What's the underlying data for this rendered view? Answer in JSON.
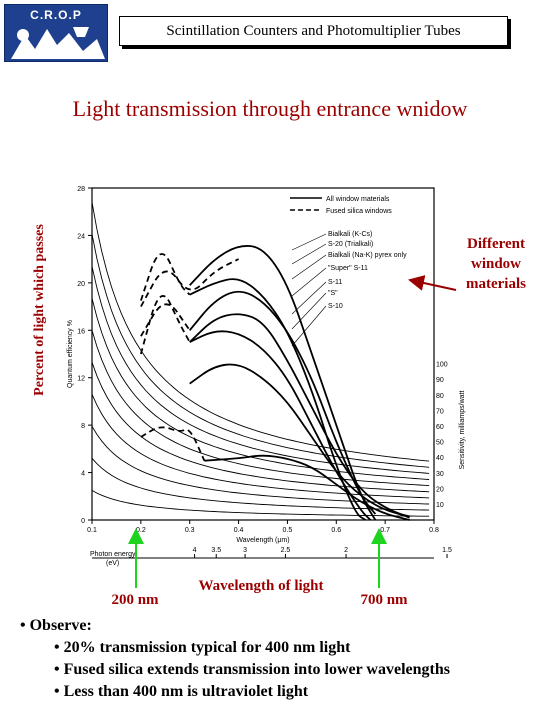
{
  "logo": {
    "text": "C.R.O.P"
  },
  "header": {
    "title": "Scintillation Counters and Photomultiplier Tubes"
  },
  "slide": {
    "title": "Light transmission through entrance wnidow"
  },
  "y_axis_label": "Percent of light which passes",
  "annotations": {
    "different": [
      "Different",
      "window",
      "materials"
    ],
    "wavelength": "Wavelength of light",
    "nm200": "200 nm",
    "nm700": "700 nm"
  },
  "observe": {
    "heading": "• Observe:",
    "points": [
      "• 20% transmission typical for 400 nm light",
      "• Fused silica extends transmission into lower wavelengths",
      "• Less than 400 nm is ultraviolet light"
    ]
  },
  "chart_data": {
    "type": "line",
    "legend": [
      "All window materials",
      "Fused silica windows"
    ],
    "curve_labels": [
      "Bialkali (K-Cs)",
      "S-20 (Trialkali)",
      "Bialkali (Na-K) pyrex only",
      "\"Super\" S-11",
      "S-11",
      "\"S\"",
      "S-10"
    ],
    "xlabel": "Wavelength (μm)",
    "ylabel": "Quantum efficiency %",
    "y2label": "Sensitivity, milliamps/watt",
    "photon_label": [
      "Photon energy",
      "(eV)"
    ],
    "xlim": [
      0.1,
      0.8
    ],
    "ylim": [
      0,
      28
    ],
    "x_ticks": [
      "0.1",
      "0.2",
      "0.3",
      "0.4",
      "0.5",
      "0.6",
      "0.7",
      "0.8"
    ],
    "y_ticks": [
      "0",
      "4",
      "8",
      "12",
      "16",
      "20",
      "24",
      "28"
    ],
    "y2_ticks": [
      "10",
      "20",
      "30",
      "40",
      "50",
      "60",
      "70",
      "80",
      "90",
      "100"
    ],
    "photon_ticks": [
      "4",
      "3.5",
      "3",
      "2.5",
      "2",
      "1.5"
    ],
    "series": [
      {
        "style": "solid",
        "points": [
          [
            0.3,
            19.8
          ],
          [
            0.35,
            22
          ],
          [
            0.4,
            23.2
          ],
          [
            0.45,
            23
          ],
          [
            0.5,
            20
          ],
          [
            0.55,
            14
          ],
          [
            0.6,
            8
          ],
          [
            0.65,
            2
          ],
          [
            0.68,
            0
          ]
        ]
      },
      {
        "style": "dashed",
        "points": [
          [
            0.2,
            18
          ],
          [
            0.25,
            21.8
          ],
          [
            0.3,
            18.8
          ],
          [
            0.35,
            21
          ],
          [
            0.4,
            22
          ]
        ]
      },
      {
        "style": "solid",
        "points": [
          [
            0.3,
            15
          ],
          [
            0.35,
            17
          ],
          [
            0.4,
            17.5
          ],
          [
            0.45,
            16.8
          ],
          [
            0.5,
            13.5
          ],
          [
            0.55,
            9.5
          ],
          [
            0.6,
            5.5
          ],
          [
            0.65,
            2.5
          ],
          [
            0.7,
            1
          ],
          [
            0.75,
            0.2
          ]
        ]
      },
      {
        "style": "dashed",
        "points": [
          [
            0.2,
            14
          ],
          [
            0.24,
            20
          ],
          [
            0.28,
            16.5
          ],
          [
            0.3,
            15
          ]
        ]
      },
      {
        "style": "solid",
        "points": [
          [
            0.3,
            19
          ],
          [
            0.35,
            20
          ],
          [
            0.4,
            20.5
          ],
          [
            0.45,
            19
          ],
          [
            0.5,
            16
          ],
          [
            0.55,
            11
          ],
          [
            0.6,
            4.5
          ],
          [
            0.64,
            0.5
          ],
          [
            0.66,
            0
          ]
        ]
      },
      {
        "style": "dashed",
        "points": [
          [
            0.2,
            18.5
          ],
          [
            0.24,
            23.5
          ],
          [
            0.28,
            19.8
          ],
          [
            0.3,
            19
          ]
        ]
      },
      {
        "style": "solid",
        "points": [
          [
            0.3,
            16
          ],
          [
            0.35,
            18.5
          ],
          [
            0.4,
            19.5
          ],
          [
            0.45,
            18.5
          ],
          [
            0.5,
            16
          ],
          [
            0.55,
            12
          ],
          [
            0.6,
            6.5
          ],
          [
            0.65,
            2
          ],
          [
            0.68,
            0.5
          ]
        ]
      },
      {
        "style": "dashed",
        "points": [
          [
            0.2,
            15.5
          ],
          [
            0.25,
            19
          ],
          [
            0.3,
            16
          ]
        ]
      },
      {
        "style": "solid",
        "points": [
          [
            0.3,
            15
          ],
          [
            0.35,
            16
          ],
          [
            0.4,
            15.8
          ],
          [
            0.45,
            14.5
          ],
          [
            0.5,
            12
          ],
          [
            0.55,
            8
          ],
          [
            0.6,
            4
          ],
          [
            0.65,
            0.8
          ],
          [
            0.67,
            0
          ]
        ]
      },
      {
        "style": "solid",
        "points": [
          [
            0.3,
            11.5
          ],
          [
            0.35,
            13
          ],
          [
            0.4,
            13.2
          ],
          [
            0.45,
            12
          ],
          [
            0.5,
            10
          ],
          [
            0.55,
            7
          ],
          [
            0.6,
            4
          ],
          [
            0.65,
            2
          ],
          [
            0.7,
            0.8
          ],
          [
            0.75,
            0.3
          ]
        ]
      },
      {
        "style": "solid",
        "points": [
          [
            0.33,
            5
          ],
          [
            0.4,
            5.2
          ],
          [
            0.45,
            5.5
          ],
          [
            0.5,
            5.2
          ],
          [
            0.55,
            4.5
          ],
          [
            0.6,
            3
          ],
          [
            0.65,
            1.5
          ],
          [
            0.7,
            0.5
          ],
          [
            0.75,
            0
          ]
        ]
      },
      {
        "style": "dashed",
        "points": [
          [
            0.2,
            7
          ],
          [
            0.24,
            8
          ],
          [
            0.28,
            7.4
          ],
          [
            0.3,
            7.8
          ],
          [
            0.33,
            5
          ]
        ]
      }
    ]
  }
}
